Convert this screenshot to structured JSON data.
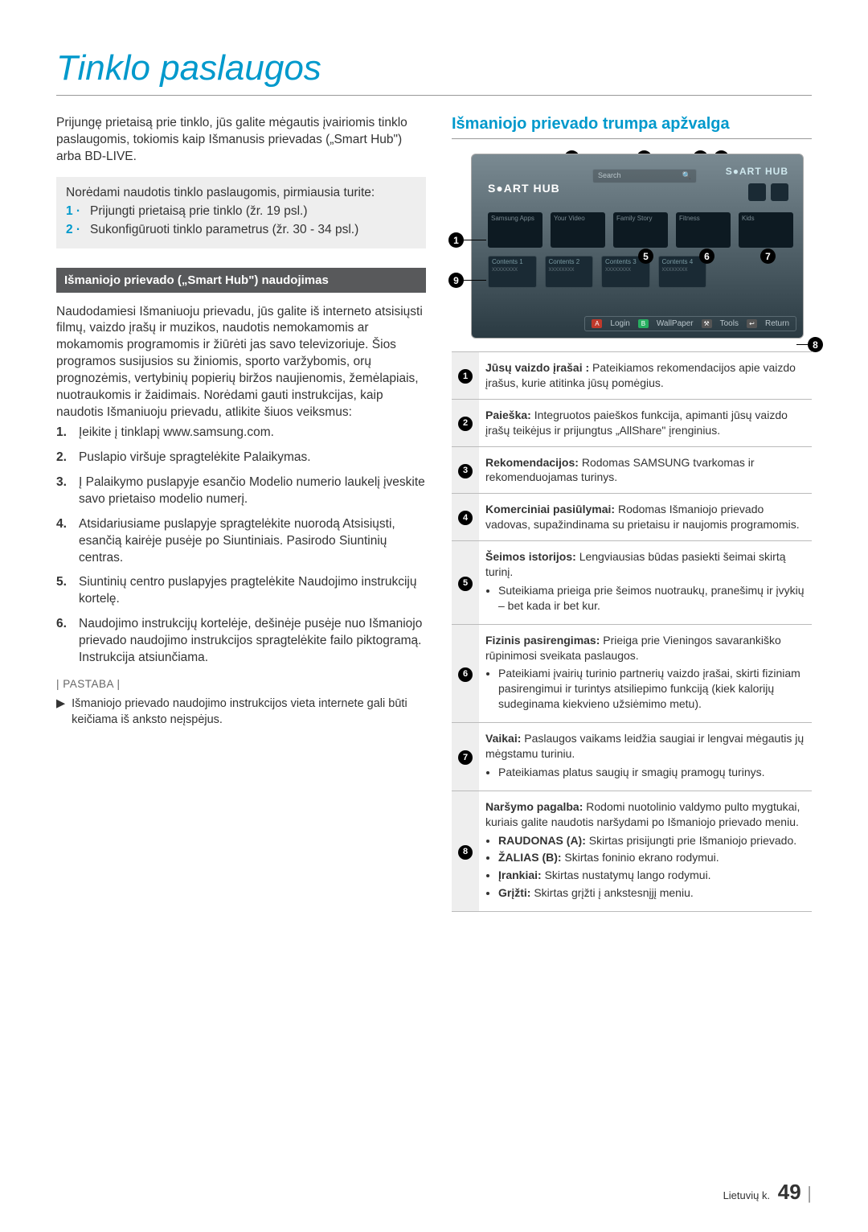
{
  "title": "Tinklo paslaugos",
  "intro": "Prijungę prietaisą prie tinklo, jūs galite mėgautis įvairiomis tinklo paslaugomis, tokiomis kaip Išmanusis prievadas („Smart Hub\") arba BD-LIVE.",
  "prereq": {
    "lead": "Norėdami naudotis tinklo paslaugomis, pirmiausia turite:",
    "n1": "1 ·",
    "t1": "Prijungti prietaisą prie tinklo (žr. 19 psl.)",
    "n2": "2 ·",
    "t2": "Sukonfigūruoti tinklo parametrus (žr. 30 - 34 psl.)"
  },
  "section1_title": "Išmaniojo prievado („Smart Hub\") naudojimas",
  "body1": "Naudodamiesi Išmaniuoju prievadu, jūs galite iš interneto atsisiųsti filmų, vaizdo įrašų ir muzikos, naudotis nemokamomis ar mokamomis programomis ir žiūrėti jas savo televizoriuje. Šios programos susijusios su žiniomis, sporto varžybomis, orų prognozėmis, vertybinių popierių biržos naujienomis, žemėlapiais, nuotraukomis ir žaidimais. Norėdami gauti instrukcijas, kaip naudotis Išmaniuoju prievadu, atlikite šiuos veiksmus:",
  "steps": [
    {
      "n": "1.",
      "t": "Įeikite į tinklapį www.samsung.com."
    },
    {
      "n": "2.",
      "t": "Puslapio viršuje spragtelėkite Palaikymas."
    },
    {
      "n": "3.",
      "t": "Į Palaikymo puslapyje esančio Modelio numerio laukelį įveskite savo prietaiso modelio numerį."
    },
    {
      "n": "4.",
      "t": "Atsidariusiame puslapyje spragtelėkite nuorodą Atsisiųsti, esančią kairėje pusėje po Siuntiniais. Pasirodo Siuntinių centras."
    },
    {
      "n": "5.",
      "t": "Siuntinių centro puslapyjes pragtelėkite Naudojimo instrukcijų kortelę."
    },
    {
      "n": "6.",
      "t": "Naudojimo instrukcijų kortelėje, dešinėje pusėje nuo Išmaniojo prievado naudojimo instrukcijos spragtelėkite failo piktogramą. Instrukcija atsiunčiama."
    }
  ],
  "note_label": "| PASTABA |",
  "note_text": "Išmaniojo prievado naudojimo instrukcijos vieta internete gali būti keičiama iš anksto neįspėjus.",
  "right_title": "Išmaniojo prievado trumpa apžvalga",
  "hub": {
    "logo": "S●ART HUB",
    "logo2": "S●ART HUB",
    "search": "Search",
    "cards": [
      "Samsung Apps",
      "Your Video",
      "Family Story",
      "Fitness",
      "Kids"
    ],
    "cards2": [
      "Contents 1",
      "Contents 2",
      "Contents 3",
      "Contents 4"
    ],
    "subs": [
      "xxxxxxxx",
      "xxxxxxxx",
      "xxxxxxxx",
      "xxxxxxxx"
    ],
    "bb": {
      "a": "A",
      "al": "Login",
      "b": "B",
      "bl": "WallPaper",
      "t": "Tools",
      "r": "Return"
    }
  },
  "rows": [
    {
      "n": "1",
      "html": "<b>Jūsų vaizdo įrašai :</b> Pateikiamos rekomendacijos apie vaizdo įrašus, kurie atitinka jūsų pomėgius."
    },
    {
      "n": "2",
      "html": "<b>Paieška:</b> Integruotos paieškos funkcija, apimanti jūsų vaizdo įrašų teikėjus ir prijungtus „AllShare\" įrenginius."
    },
    {
      "n": "3",
      "html": "<b>Rekomendacijos:</b> Rodomas SAMSUNG tvarkomas ir rekomenduojamas turinys."
    },
    {
      "n": "4",
      "html": "<b>Komerciniai pasiūlymai:</b> Rodomas Išmaniojo prievado vadovas, supažindinama su prietaisu ir naujomis programomis."
    },
    {
      "n": "5",
      "html": "<b>Šeimos istorijos:</b> Lengviausias būdas pasiekti šeimai skirtą turinį.<ul><li>Suteikiama prieiga prie šeimos nuotraukų, pranešimų ir įvykių – bet kada ir bet kur.</li></ul>"
    },
    {
      "n": "6",
      "html": "<b>Fizinis pasirengimas:</b> Prieiga prie Vieningos savarankiško rūpinimosi sveikata paslaugos.<ul><li>Pateikiami įvairių turinio partnerių vaizdo įrašai, skirti fiziniam pasirengimui ir turintys atsiliepimo funkciją (kiek kalorijų sudeginama kiekvieno užsiėmimo metu).</li></ul>"
    },
    {
      "n": "7",
      "html": "<b>Vaikai:</b> Paslaugos vaikams leidžia saugiai ir lengvai mėgautis jų mėgstamu turiniu.<ul><li>Pateikiamas platus saugių ir smagių pramogų turinys.</li></ul>"
    },
    {
      "n": "8",
      "html": "<b>Naršymo pagalba:</b> Rodomi nuotolinio valdymo pulto mygtukai, kuriais galite naudotis naršydami po Išmaniojo prievado meniu.<ul><li><b>RAUDONAS (A):</b> Skirtas prisijungti prie Išmaniojo prievado.</li><li><b>ŽALIAS (B):</b> Skirtas foninio ekrano rodymui.</li><li><b>Įrankiai:</b> Skirtas nustatymų lango rodymui.</li><li><b>Grįžti:</b> Skirtas grįžti į ankstesnįjį meniu.</li></ul>"
    }
  ],
  "footer": {
    "lang": "Lietuvių k.",
    "page": "49"
  }
}
